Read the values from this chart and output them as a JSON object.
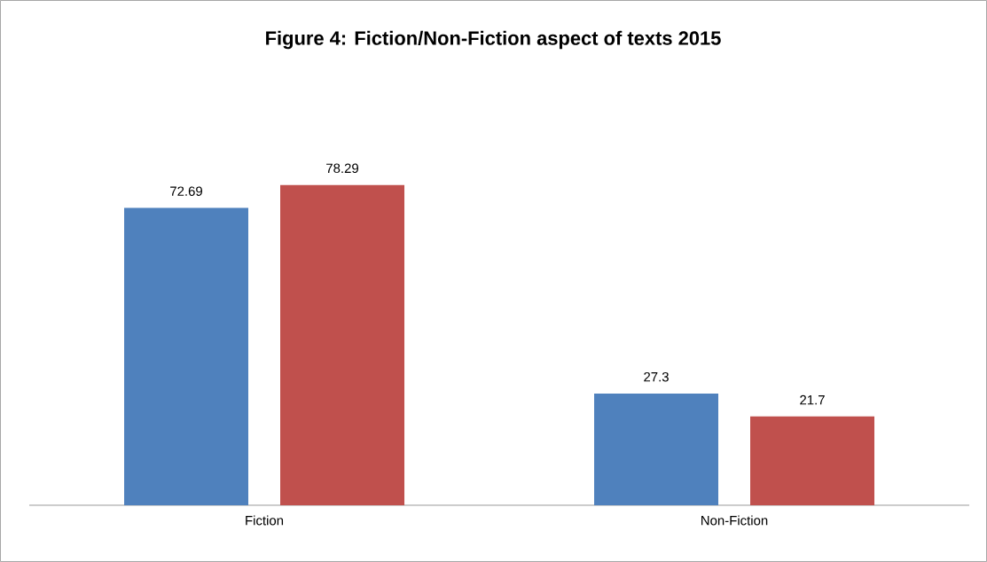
{
  "chart_data": {
    "type": "bar",
    "title": "Figure 4: Fiction/Non-Fiction aspect of texts 2015",
    "categories": [
      "Fiction",
      "Non-Fiction"
    ],
    "series": [
      {
        "color": "#4f81bd",
        "values": [
          72.69,
          27.3
        ]
      },
      {
        "color": "#c0504d",
        "values": [
          78.29,
          21.7
        ]
      }
    ],
    "data_labels": true
  }
}
